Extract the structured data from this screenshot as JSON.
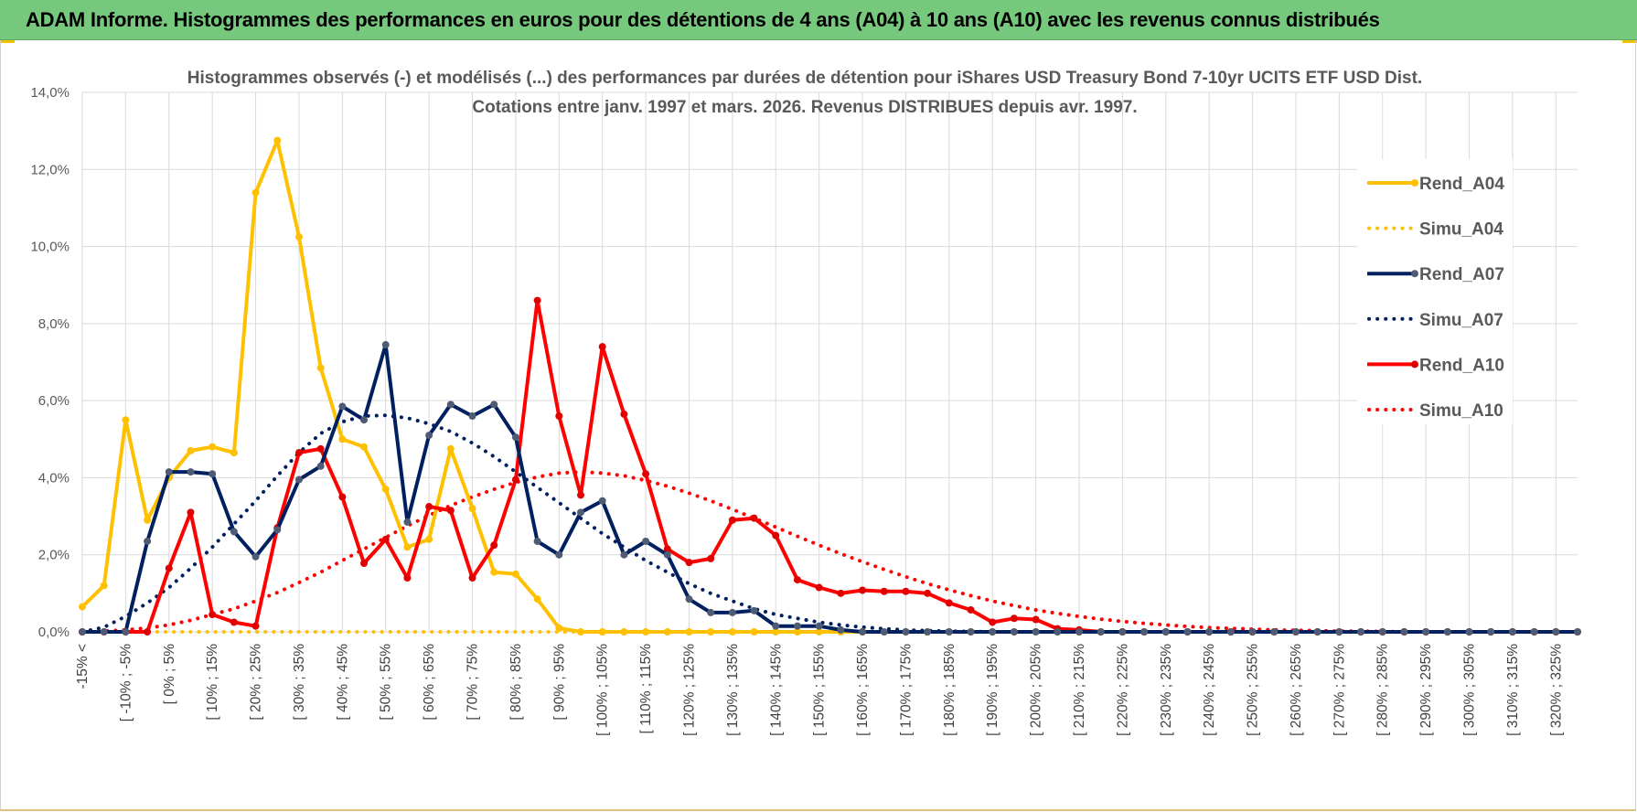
{
  "header": {
    "title": "ADAM Informe. Histogrammes des performances en euros pour des détentions de 4 ans (A04) à 10 ans (A10) avec les revenus connus distribués"
  },
  "colors": {
    "header_bg": "#76c87c",
    "A04": "#ffc000",
    "A07": "#002060",
    "A10": "#ff0000",
    "marker_A07": "#4f5b74",
    "marker_A10": "#e00000"
  },
  "chart_data": {
    "type": "line",
    "title_line1": "Histogrammes observés (-) et modélisés (...) des performances par durées de détention pour iShares USD Treasury Bond 7-10yr UCITS ETF USD Dist.",
    "title_line2": "Cotations entre janv. 1997 et mars. 2026. Revenus DISTRIBUES depuis avr. 1997.",
    "xlabel": "",
    "ylabel": "",
    "ylim": [
      0,
      0.14
    ],
    "y_ticks": [
      "0,0%",
      "2,0%",
      "4,0%",
      "6,0%",
      "8,0%",
      "10,0%",
      "12,0%",
      "14,0%"
    ],
    "grid": true,
    "legend_position": "right",
    "x_tick_labels": [
      "-15% <",
      "[ -10% ; -5%",
      "[ 0% ; 5%",
      "[ 10% ; 15%",
      "[ 20% ; 25%",
      "[ 30% ; 35%",
      "[ 40% ; 45%",
      "[ 50% ; 55%",
      "[ 60% ; 65%",
      "[ 70% ; 75%",
      "[ 80% ; 85%",
      "[ 90% ; 95%",
      "[ 100% ; 105%",
      "[ 110% ; 115%",
      "[ 120% ; 125%",
      "[ 130% ; 135%",
      "[ 140% ; 145%",
      "[ 150% ; 155%",
      "[ 160% ; 165%",
      "[ 170% ; 175%",
      "[ 180% ; 185%",
      "[ 190% ; 195%",
      "[ 200% ; 205%",
      "[ 210% ; 215%",
      "[ 220% ; 225%",
      "[ 230% ; 235%",
      "[ 240% ; 245%",
      "[ 250% ; 255%",
      "[ 260% ; 265%",
      "[ 270% ; 275%",
      "[ 280% ; 285%",
      "[ 290% ; 295%",
      "[ 300% ; 305%",
      "[ 310% ; 315%",
      "[ 320% ; 325%"
    ],
    "series": [
      {
        "name": "Rend_A04",
        "style": "solid",
        "color": "#ffc000",
        "values": [
          0.0065,
          0.012,
          0.055,
          0.029,
          0.04,
          0.047,
          0.048,
          0.0465,
          0.114,
          0.1275,
          0.1025,
          0.0685,
          0.05,
          0.048,
          0.037,
          0.022,
          0.024,
          0.0475,
          0.032,
          0.0155,
          0.015,
          0.0085,
          0.001,
          0,
          0,
          0,
          0,
          0,
          0,
          0,
          0,
          0,
          0,
          0,
          0,
          0,
          0,
          0,
          0,
          0,
          0,
          0,
          0,
          0,
          0,
          0,
          0,
          0,
          0,
          0,
          0,
          0,
          0,
          0,
          0,
          0,
          0,
          0,
          0,
          0,
          0,
          0,
          0,
          0,
          0,
          0,
          0,
          0,
          0,
          0
        ]
      },
      {
        "name": "Simu_A04",
        "style": "dotted",
        "color": "#ffc000",
        "values": [
          0,
          0,
          0,
          0,
          0,
          0,
          0,
          0,
          0,
          0,
          0,
          0,
          0,
          0,
          0,
          0,
          0,
          0,
          0,
          0,
          0,
          0,
          0,
          0,
          0,
          0,
          0,
          0,
          0,
          0,
          0,
          0,
          0,
          0,
          0,
          0,
          0,
          0,
          0,
          0,
          0,
          0,
          0,
          0,
          0,
          0,
          0,
          0,
          0,
          0,
          0,
          0,
          0,
          0,
          0,
          0,
          0,
          0,
          0,
          0,
          0,
          0,
          0,
          0,
          0,
          0,
          0,
          0,
          0,
          0
        ]
      },
      {
        "name": "Rend_A07",
        "style": "solid",
        "color": "#002060",
        "values": [
          0,
          0,
          0,
          0.0235,
          0.0415,
          0.0415,
          0.041,
          0.026,
          0.0195,
          0.0265,
          0.0395,
          0.043,
          0.0585,
          0.055,
          0.0745,
          0.0285,
          0.051,
          0.059,
          0.056,
          0.059,
          0.0505,
          0.0235,
          0.02,
          0.031,
          0.034,
          0.02,
          0.0235,
          0.02,
          0.0085,
          0.005,
          0.005,
          0.0055,
          0.0015,
          0.0015,
          0.0015,
          0.0005,
          0,
          0,
          0,
          0,
          0,
          0,
          0,
          0,
          0,
          0,
          0,
          0,
          0,
          0,
          0,
          0,
          0,
          0,
          0,
          0,
          0,
          0,
          0,
          0,
          0,
          0,
          0,
          0,
          0,
          0,
          0,
          0,
          0,
          0
        ]
      },
      {
        "name": "Simu_A07",
        "style": "dotted",
        "color": "#002060",
        "values": [
          0,
          0.0012,
          0.004,
          0.0075,
          0.0115,
          0.0165,
          0.022,
          0.028,
          0.034,
          0.0405,
          0.0465,
          0.0515,
          0.0545,
          0.056,
          0.0562,
          0.0555,
          0.054,
          0.052,
          0.049,
          0.0455,
          0.0415,
          0.0375,
          0.0335,
          0.0295,
          0.0255,
          0.022,
          0.0185,
          0.0155,
          0.0125,
          0.01,
          0.008,
          0.006,
          0.0045,
          0.0035,
          0.0025,
          0.0018,
          0.0012,
          0.0008,
          0.0005,
          0.0003,
          0.0002,
          0.0001,
          0,
          0,
          0,
          0,
          0,
          0,
          0,
          0,
          0,
          0,
          0,
          0,
          0,
          0,
          0,
          0,
          0,
          0,
          0,
          0,
          0,
          0,
          0,
          0,
          0,
          0,
          0,
          0
        ]
      },
      {
        "name": "Rend_A10",
        "style": "solid",
        "color": "#ff0000",
        "values": [
          0,
          0,
          0,
          0,
          0.0165,
          0.031,
          0.0045,
          0.0025,
          0.0015,
          0.027,
          0.0465,
          0.0475,
          0.035,
          0.0178,
          0.024,
          0.014,
          0.0325,
          0.0315,
          0.014,
          0.0225,
          0.0395,
          0.086,
          0.056,
          0.0355,
          0.074,
          0.0565,
          0.041,
          0.0215,
          0.018,
          0.019,
          0.029,
          0.0295,
          0.025,
          0.0135,
          0.0115,
          0.01,
          0.0108,
          0.0105,
          0.0105,
          0.01,
          0.0075,
          0.0057,
          0.0025,
          0.0035,
          0.0032,
          0.0008,
          0.0005,
          0,
          0,
          0,
          0,
          0,
          0,
          0,
          0,
          0,
          0,
          0,
          0,
          0,
          0,
          0,
          0,
          0,
          0,
          0,
          0,
          0,
          0,
          0
        ]
      },
      {
        "name": "Simu_A10",
        "style": "dotted",
        "color": "#ff0000",
        "values": [
          0,
          0.0002,
          0.0005,
          0.001,
          0.0018,
          0.003,
          0.0045,
          0.006,
          0.008,
          0.0102,
          0.0128,
          0.0155,
          0.0185,
          0.0215,
          0.0245,
          0.0275,
          0.0302,
          0.0328,
          0.035,
          0.037,
          0.0388,
          0.0402,
          0.0412,
          0.0415,
          0.0412,
          0.0405,
          0.0393,
          0.0378,
          0.036,
          0.034,
          0.0318,
          0.0295,
          0.0272,
          0.0248,
          0.0225,
          0.0203,
          0.0182,
          0.0162,
          0.0143,
          0.0125,
          0.0109,
          0.0094,
          0.008,
          0.0068,
          0.0057,
          0.0048,
          0.004,
          0.0033,
          0.0027,
          0.0022,
          0.0018,
          0.0014,
          0.0011,
          0.0009,
          0.0007,
          0.0005,
          0.0004,
          0.0003,
          0.0002,
          0.0002,
          0.0001,
          0,
          0,
          0,
          0,
          0,
          0,
          0,
          0,
          0
        ]
      }
    ]
  }
}
